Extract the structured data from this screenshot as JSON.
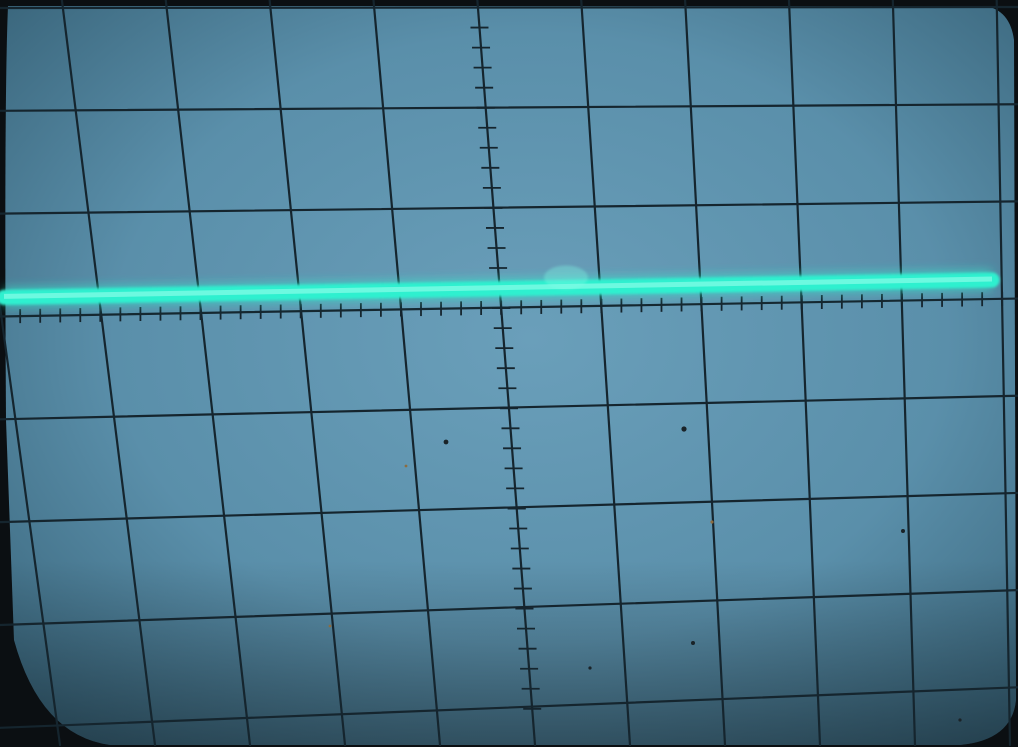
{
  "scene": {
    "subject": "oscilloscope-screen",
    "graticule": {
      "vertical_divisions": 10,
      "horizontal_divisions": 8,
      "minor_ticks_per_division": 5
    },
    "trace": {
      "shape": "flat-horizontal-line",
      "level_divisions_above_center": 0.2
    },
    "colors": {
      "screen": "#5a8faa",
      "screen_shadow": "#2f5a70",
      "grid_line": "#15252e",
      "trace": "#2ff0cf",
      "trace_glow": "#7dfbe4",
      "bezel": "#0b0f12"
    }
  }
}
